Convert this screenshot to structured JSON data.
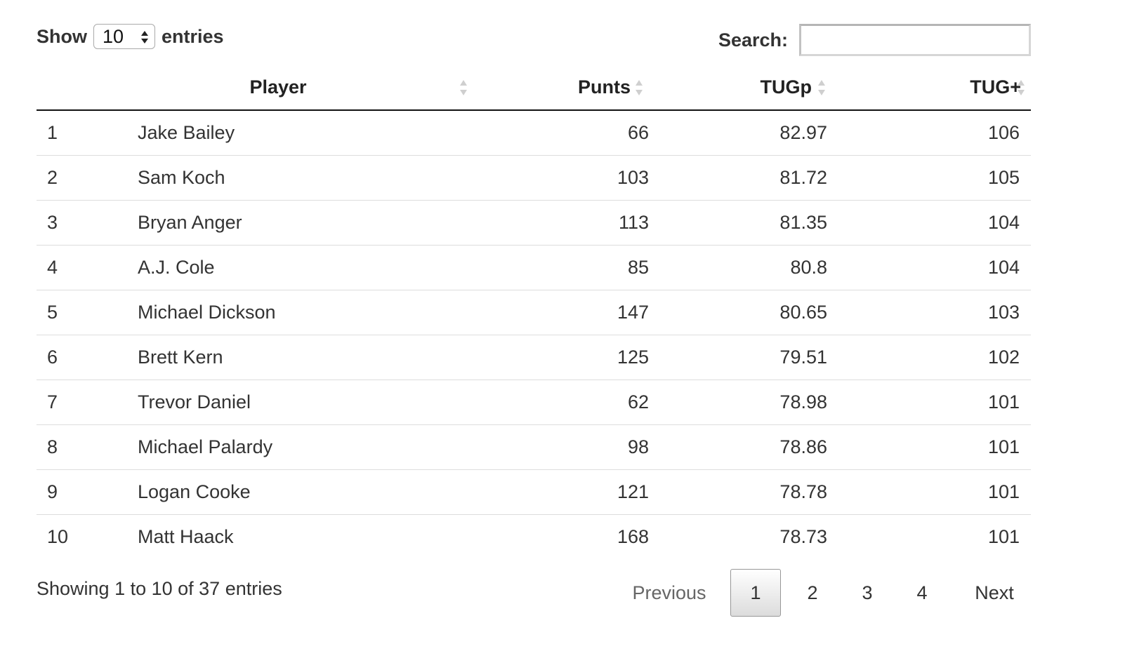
{
  "length_control": {
    "show_label": "Show",
    "selected": "10",
    "entries_label": "entries"
  },
  "search": {
    "label": "Search:",
    "value": "",
    "placeholder": ""
  },
  "table": {
    "columns": [
      "",
      "Player",
      "Punts",
      "TUGp",
      "TUG+"
    ],
    "rows": [
      {
        "idx": "1",
        "player": "Jake Bailey",
        "punts": "66",
        "tugp": "82.97",
        "tugplus": "106"
      },
      {
        "idx": "2",
        "player": "Sam Koch",
        "punts": "103",
        "tugp": "81.72",
        "tugplus": "105"
      },
      {
        "idx": "3",
        "player": "Bryan Anger",
        "punts": "113",
        "tugp": "81.35",
        "tugplus": "104"
      },
      {
        "idx": "4",
        "player": "A.J. Cole",
        "punts": "85",
        "tugp": "80.8",
        "tugplus": "104"
      },
      {
        "idx": "5",
        "player": "Michael Dickson",
        "punts": "147",
        "tugp": "80.65",
        "tugplus": "103"
      },
      {
        "idx": "6",
        "player": "Brett Kern",
        "punts": "125",
        "tugp": "79.51",
        "tugplus": "102"
      },
      {
        "idx": "7",
        "player": "Trevor Daniel",
        "punts": "62",
        "tugp": "78.98",
        "tugplus": "101"
      },
      {
        "idx": "8",
        "player": "Michael Palardy",
        "punts": "98",
        "tugp": "78.86",
        "tugplus": "101"
      },
      {
        "idx": "9",
        "player": "Logan Cooke",
        "punts": "121",
        "tugp": "78.78",
        "tugplus": "101"
      },
      {
        "idx": "10",
        "player": "Matt Haack",
        "punts": "168",
        "tugp": "78.73",
        "tugplus": "101"
      }
    ]
  },
  "footer": {
    "info": "Showing 1 to 10 of 37 entries",
    "previous_label": "Previous",
    "next_label": "Next",
    "pages": [
      "1",
      "2",
      "3",
      "4"
    ],
    "current_page": "1"
  },
  "icons": {
    "sort": "sort-both-icon",
    "select_spinner": "updown-spinner-icon"
  },
  "colors": {
    "text": "#333333",
    "header_rule": "#111111",
    "row_rule": "#dddddd",
    "sort_icon": "#cccccc",
    "disabled": "#666666"
  }
}
